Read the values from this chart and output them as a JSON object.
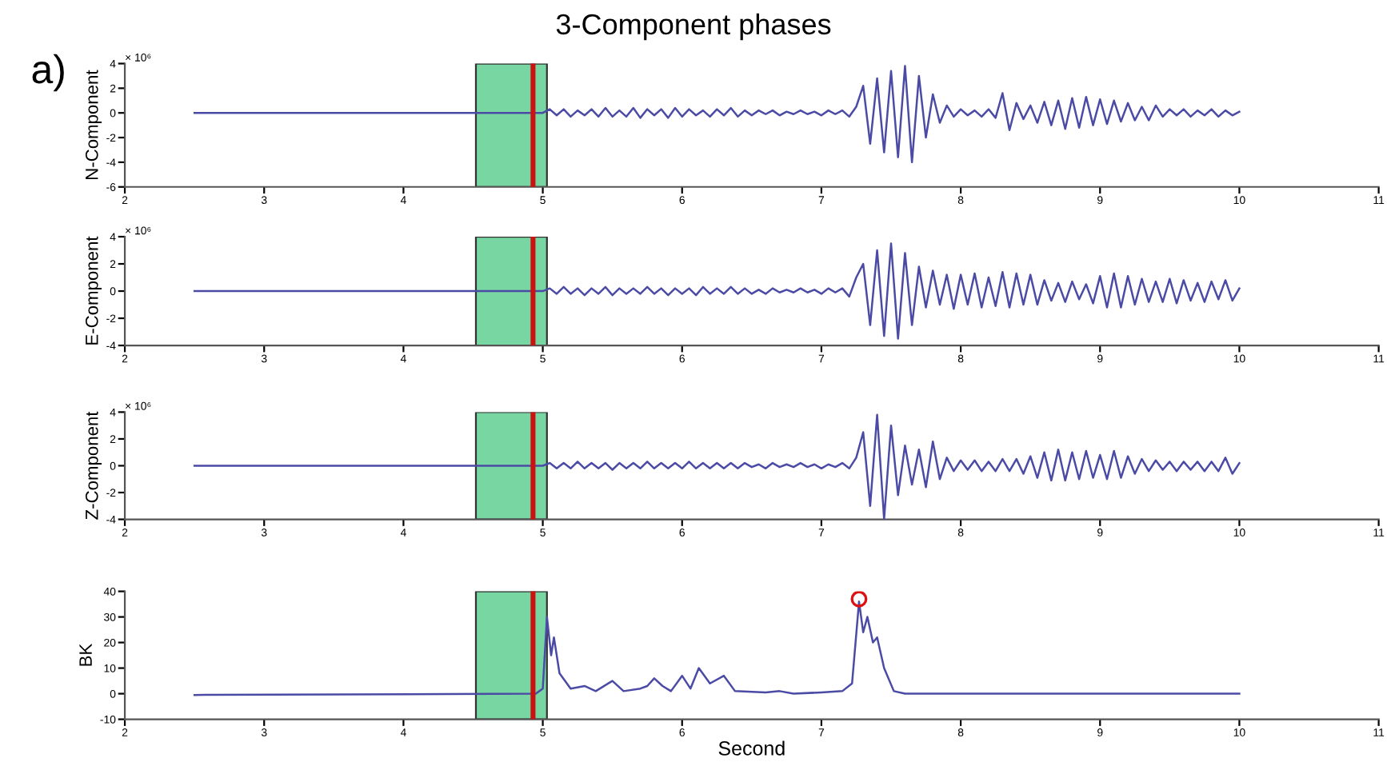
{
  "chart_data": [
    {
      "type": "line",
      "title": "3-Component phases",
      "ylabel": "N-Component",
      "annotations": [
        "a)",
        "× 10⁶"
      ],
      "xlim": [
        2,
        11
      ],
      "xticks": [
        2,
        3,
        4,
        5,
        6,
        7,
        8,
        9,
        10,
        11
      ],
      "ylim": [
        -6,
        4
      ],
      "yticks": [
        -6,
        -4,
        -2,
        0,
        2,
        4
      ],
      "grid": false,
      "bands": [
        {
          "axis": "x",
          "from": 4.52,
          "to": 5.03,
          "color": "#78d6a2"
        }
      ],
      "ref_lines": [
        {
          "axis": "x",
          "value": 4.93,
          "color": "#cc1111"
        }
      ],
      "series": [
        {
          "color": "#4b4ba6",
          "x": [
            2.5,
            5.0,
            5.05,
            5.1,
            5.15,
            5.2,
            5.25,
            5.3,
            5.35,
            5.4,
            5.45,
            5.5,
            5.55,
            5.6,
            5.65,
            5.7,
            5.75,
            5.8,
            5.85,
            5.9,
            5.95,
            6.0,
            6.05,
            6.1,
            6.15,
            6.2,
            6.25,
            6.3,
            6.35,
            6.4,
            6.45,
            6.5,
            6.55,
            6.6,
            6.65,
            6.7,
            6.75,
            6.8,
            6.85,
            6.9,
            6.95,
            7.0,
            7.05,
            7.1,
            7.15,
            7.2,
            7.25,
            7.3,
            7.35,
            7.4,
            7.45,
            7.5,
            7.55,
            7.6,
            7.65,
            7.7,
            7.75,
            7.8,
            7.85,
            7.9,
            7.95,
            8.0,
            8.05,
            8.1,
            8.15,
            8.2,
            8.25,
            8.3,
            8.35,
            8.4,
            8.45,
            8.5,
            8.55,
            8.6,
            8.65,
            8.7,
            8.75,
            8.8,
            8.85,
            8.9,
            8.95,
            9.0,
            9.05,
            9.1,
            9.15,
            9.2,
            9.25,
            9.3,
            9.35,
            9.4,
            9.45,
            9.5,
            9.55,
            9.6,
            9.65,
            9.7,
            9.75,
            9.8,
            9.85,
            9.9,
            9.95,
            10.0
          ],
          "values": [
            0,
            0,
            0.3,
            -0.2,
            0.3,
            -0.3,
            0.2,
            -0.2,
            0.3,
            -0.3,
            0.4,
            -0.3,
            0.2,
            -0.3,
            0.4,
            -0.4,
            0.3,
            -0.2,
            0.3,
            -0.4,
            0.4,
            -0.3,
            0.3,
            -0.2,
            0.2,
            -0.3,
            0.3,
            -0.2,
            0.4,
            -0.3,
            0.2,
            -0.2,
            0.2,
            -0.1,
            0.2,
            -0.2,
            0.1,
            -0.1,
            0.2,
            -0.1,
            0.1,
            -0.2,
            0.2,
            -0.1,
            0.2,
            -0.3,
            0.5,
            2.2,
            -2.5,
            2.8,
            -3.2,
            3.4,
            -3.6,
            3.8,
            -4.0,
            3.0,
            -2.0,
            1.5,
            -0.8,
            0.6,
            -0.3,
            0.3,
            -0.2,
            0.2,
            -0.3,
            0.3,
            -0.4,
            1.6,
            -1.4,
            0.8,
            -0.5,
            0.6,
            -0.8,
            0.9,
            -1.0,
            1.0,
            -1.3,
            1.2,
            -1.2,
            1.3,
            -1.0,
            1.1,
            -0.9,
            1.0,
            -0.7,
            0.8,
            -0.6,
            0.5,
            -0.6,
            0.6,
            -0.3,
            0.3,
            -0.2,
            0.3,
            -0.3,
            0.2,
            -0.2,
            0.3,
            -0.3,
            0.2,
            -0.2,
            0.1
          ]
        }
      ]
    },
    {
      "type": "line",
      "ylabel": "E-Component",
      "annotations": [
        "× 10⁶"
      ],
      "xlim": [
        2,
        11
      ],
      "xticks": [
        2,
        3,
        4,
        5,
        6,
        7,
        8,
        9,
        10,
        11
      ],
      "ylim": [
        -4,
        4
      ],
      "yticks": [
        -4,
        -2,
        0,
        2,
        4
      ],
      "grid": false,
      "bands": [
        {
          "axis": "x",
          "from": 4.52,
          "to": 5.03,
          "color": "#78d6a2"
        }
      ],
      "ref_lines": [
        {
          "axis": "x",
          "value": 4.93,
          "color": "#cc1111"
        }
      ],
      "series": [
        {
          "color": "#4b4ba6",
          "x": [
            2.5,
            5.0,
            5.05,
            5.1,
            5.15,
            5.2,
            5.25,
            5.3,
            5.35,
            5.4,
            5.45,
            5.5,
            5.55,
            5.6,
            5.65,
            5.7,
            5.75,
            5.8,
            5.85,
            5.9,
            5.95,
            6.0,
            6.05,
            6.1,
            6.15,
            6.2,
            6.25,
            6.3,
            6.35,
            6.4,
            6.45,
            6.5,
            6.55,
            6.6,
            6.65,
            6.7,
            6.75,
            6.8,
            6.85,
            6.9,
            6.95,
            7.0,
            7.05,
            7.1,
            7.15,
            7.2,
            7.25,
            7.3,
            7.35,
            7.4,
            7.45,
            7.5,
            7.55,
            7.6,
            7.65,
            7.7,
            7.75,
            7.8,
            7.85,
            7.9,
            7.95,
            8.0,
            8.05,
            8.1,
            8.15,
            8.2,
            8.25,
            8.3,
            8.35,
            8.4,
            8.45,
            8.5,
            8.55,
            8.6,
            8.65,
            8.7,
            8.75,
            8.8,
            8.85,
            8.9,
            8.95,
            9.0,
            9.05,
            9.1,
            9.15,
            9.2,
            9.25,
            9.3,
            9.35,
            9.4,
            9.45,
            9.5,
            9.55,
            9.6,
            9.65,
            9.7,
            9.75,
            9.8,
            9.85,
            9.9,
            9.95,
            10.0
          ],
          "values": [
            0,
            0,
            0.2,
            -0.2,
            0.3,
            -0.2,
            0.2,
            -0.3,
            0.2,
            -0.2,
            0.3,
            -0.3,
            0.2,
            -0.2,
            0.2,
            -0.2,
            0.3,
            -0.2,
            0.2,
            -0.3,
            0.2,
            -0.2,
            0.2,
            -0.3,
            0.3,
            -0.2,
            0.2,
            -0.2,
            0.3,
            -0.2,
            0.2,
            -0.2,
            0.1,
            -0.2,
            0.2,
            -0.1,
            0.1,
            -0.1,
            0.2,
            -0.1,
            0.1,
            -0.2,
            0.2,
            -0.1,
            0.2,
            -0.4,
            1.0,
            2.0,
            -2.5,
            3.0,
            -3.3,
            3.5,
            -3.5,
            2.8,
            -2.5,
            1.8,
            -1.2,
            1.5,
            -1.0,
            1.2,
            -1.3,
            1.2,
            -1.0,
            1.3,
            -1.2,
            1.0,
            -1.1,
            1.4,
            -1.2,
            1.3,
            -1.0,
            1.2,
            -1.0,
            0.8,
            -0.7,
            0.6,
            -0.8,
            0.7,
            -0.6,
            0.5,
            -0.9,
            1.1,
            -1.2,
            1.3,
            -1.2,
            1.1,
            -1.0,
            0.9,
            -0.8,
            0.7,
            -0.8,
            0.9,
            -0.9,
            0.8,
            -0.7,
            0.6,
            -0.8,
            0.7,
            -0.6,
            0.8,
            -0.7,
            0.2
          ]
        }
      ]
    },
    {
      "type": "line",
      "ylabel": "Z-Component",
      "annotations": [
        "× 10⁶"
      ],
      "xlim": [
        2,
        11
      ],
      "xticks": [
        2,
        3,
        4,
        5,
        6,
        7,
        8,
        9,
        10,
        11
      ],
      "ylim": [
        -4,
        4
      ],
      "yticks": [
        -4,
        -2,
        0,
        2,
        4
      ],
      "grid": false,
      "bands": [
        {
          "axis": "x",
          "from": 4.52,
          "to": 5.03,
          "color": "#78d6a2"
        }
      ],
      "ref_lines": [
        {
          "axis": "x",
          "value": 4.93,
          "color": "#cc1111"
        }
      ],
      "series": [
        {
          "color": "#4b4ba6",
          "x": [
            2.5,
            5.0,
            5.05,
            5.1,
            5.15,
            5.2,
            5.25,
            5.3,
            5.35,
            5.4,
            5.45,
            5.5,
            5.55,
            5.6,
            5.65,
            5.7,
            5.75,
            5.8,
            5.85,
            5.9,
            5.95,
            6.0,
            6.05,
            6.1,
            6.15,
            6.2,
            6.25,
            6.3,
            6.35,
            6.4,
            6.45,
            6.5,
            6.55,
            6.6,
            6.65,
            6.7,
            6.75,
            6.8,
            6.85,
            6.9,
            6.95,
            7.0,
            7.05,
            7.1,
            7.15,
            7.2,
            7.25,
            7.3,
            7.35,
            7.4,
            7.45,
            7.5,
            7.55,
            7.6,
            7.65,
            7.7,
            7.75,
            7.8,
            7.85,
            7.9,
            7.95,
            8.0,
            8.05,
            8.1,
            8.15,
            8.2,
            8.25,
            8.3,
            8.35,
            8.4,
            8.45,
            8.5,
            8.55,
            8.6,
            8.65,
            8.7,
            8.75,
            8.8,
            8.85,
            8.9,
            8.95,
            9.0,
            9.05,
            9.1,
            9.15,
            9.2,
            9.25,
            9.3,
            9.35,
            9.4,
            9.45,
            9.5,
            9.55,
            9.6,
            9.65,
            9.7,
            9.75,
            9.8,
            9.85,
            9.9,
            9.95,
            10.0
          ],
          "values": [
            0,
            0,
            0.2,
            -0.2,
            0.2,
            -0.2,
            0.3,
            -0.2,
            0.2,
            -0.2,
            0.2,
            -0.3,
            0.2,
            -0.2,
            0.2,
            -0.2,
            0.3,
            -0.2,
            0.2,
            -0.2,
            0.2,
            -0.2,
            0.3,
            -0.2,
            0.2,
            -0.2,
            0.2,
            -0.2,
            0.2,
            -0.2,
            0.2,
            -0.1,
            0.1,
            -0.2,
            0.2,
            -0.1,
            0.1,
            -0.1,
            0.2,
            -0.1,
            0.1,
            -0.2,
            0.1,
            -0.1,
            0.2,
            -0.2,
            0.6,
            2.5,
            -3.0,
            3.8,
            -4.0,
            3.0,
            -2.2,
            1.5,
            -1.4,
            1.2,
            -1.6,
            1.8,
            -1.0,
            0.6,
            -0.4,
            0.4,
            -0.3,
            0.4,
            -0.4,
            0.3,
            -0.4,
            0.5,
            -0.4,
            0.5,
            -0.6,
            0.7,
            -0.9,
            1.0,
            -1.1,
            1.2,
            -1.1,
            1.0,
            -1.0,
            1.1,
            -0.9,
            0.8,
            -1.0,
            1.1,
            -0.9,
            0.7,
            -0.6,
            0.5,
            -0.4,
            0.4,
            -0.3,
            0.3,
            -0.4,
            0.3,
            -0.3,
            0.3,
            -0.4,
            0.3,
            -0.4,
            0.6,
            -0.6,
            0.2
          ]
        }
      ]
    },
    {
      "type": "line",
      "ylabel": "BK",
      "xlabel": "Second",
      "xlim": [
        2,
        11
      ],
      "xticks": [
        2,
        3,
        4,
        5,
        6,
        7,
        8,
        9,
        10,
        11
      ],
      "ylim": [
        -10,
        40
      ],
      "yticks": [
        -10,
        0,
        10,
        20,
        30,
        40
      ],
      "grid": false,
      "bands": [
        {
          "axis": "x",
          "from": 4.52,
          "to": 5.03,
          "color": "#78d6a2"
        }
      ],
      "ref_lines": [
        {
          "axis": "x",
          "value": 4.93,
          "color": "#cc1111"
        }
      ],
      "series": [
        {
          "color": "#4b4ba6",
          "x": [
            2.5,
            4.95,
            5.0,
            5.03,
            5.06,
            5.08,
            5.12,
            5.2,
            5.3,
            5.38,
            5.5,
            5.58,
            5.7,
            5.75,
            5.8,
            5.86,
            5.92,
            6.0,
            6.06,
            6.12,
            6.2,
            6.3,
            6.38,
            6.6,
            6.7,
            6.8,
            7.0,
            7.15,
            7.22,
            7.27,
            7.3,
            7.33,
            7.37,
            7.4,
            7.45,
            7.52,
            7.6,
            10.0
          ],
          "values": [
            -0.5,
            0,
            2,
            30,
            15,
            22,
            8,
            2,
            3,
            1,
            5,
            1,
            2,
            3,
            6,
            3,
            1,
            7,
            2,
            10,
            4,
            7,
            1,
            0.5,
            1,
            0,
            0.5,
            1,
            4,
            36,
            24,
            30,
            20,
            22,
            10,
            1,
            0,
            0
          ]
        },
        {
          "type": "scatter",
          "marker": "circle",
          "color": "#dd1111",
          "x": [
            7.27
          ],
          "values": [
            37
          ]
        }
      ]
    }
  ]
}
